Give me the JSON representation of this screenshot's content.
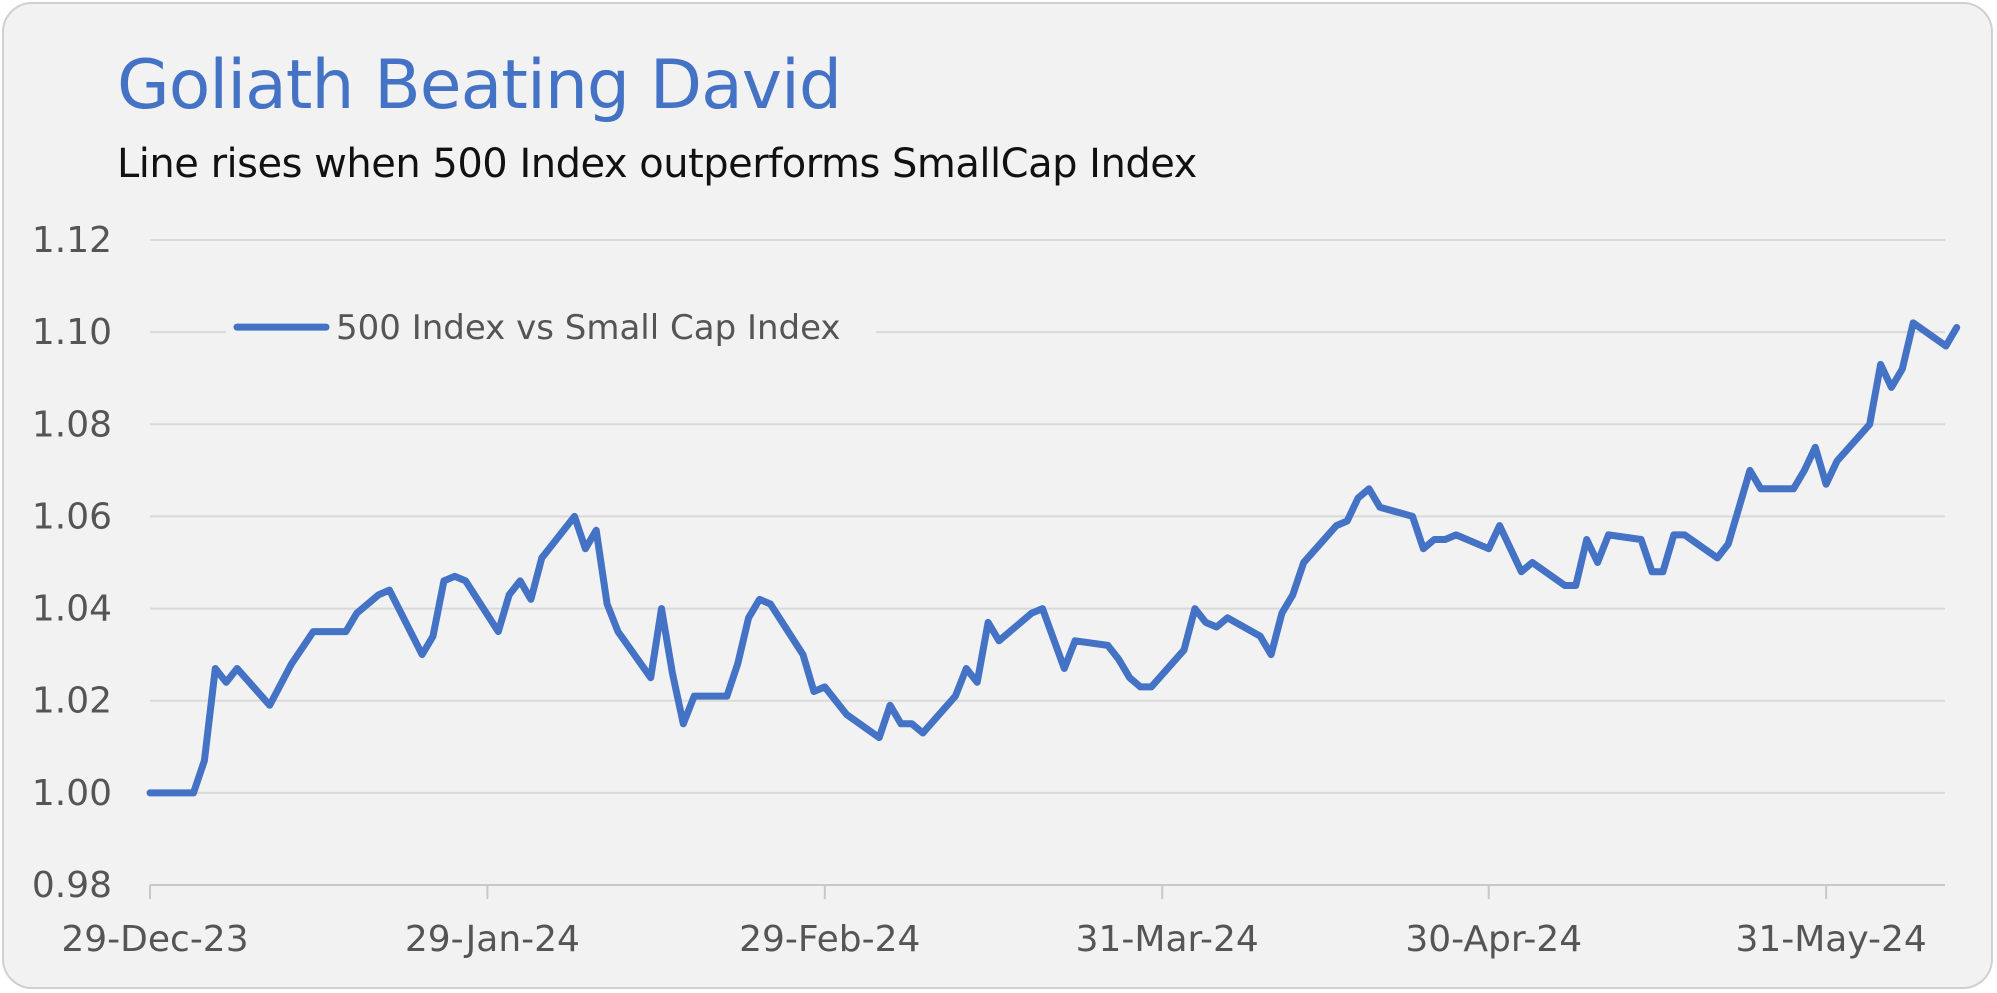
{
  "colors": {
    "background": "#f2f2f3",
    "title": "#4472c4",
    "series": "#4472c4",
    "grid": "#d9d9d9",
    "axis_text": "#555555"
  },
  "chart_data": {
    "type": "line",
    "title": "Goliath Beating David",
    "subtitle": "Line rises when 500 Index outperforms SmallCap Index",
    "xlabel": "",
    "ylabel": "",
    "x_type": "date",
    "xlim": [
      "2023-12-29",
      "2024-06-07"
    ],
    "ylim": [
      0.98,
      1.12
    ],
    "y_ticks": [
      "0.98",
      "1.00",
      "1.02",
      "1.04",
      "1.06",
      "1.08",
      "1.10",
      "1.12"
    ],
    "x_ticks": [
      {
        "label": "29-Dec-23",
        "date": "2023-12-29"
      },
      {
        "label": "29-Jan-24",
        "date": "2024-01-29"
      },
      {
        "label": "29-Feb-24",
        "date": "2024-02-29"
      },
      {
        "label": "31-Mar-24",
        "date": "2024-03-31"
      },
      {
        "label": "30-Apr-24",
        "date": "2024-04-30"
      },
      {
        "label": "31-May-24",
        "date": "2024-05-31"
      }
    ],
    "grid": "horizontal",
    "legend": {
      "position": "top-left",
      "entries": [
        "500 Index vs Small Cap Index"
      ]
    },
    "series": [
      {
        "name": "500 Index vs Small Cap Index",
        "points": [
          [
            "2023-12-29",
            1.0
          ],
          [
            "2024-01-02",
            1.0
          ],
          [
            "2024-01-03",
            1.007
          ],
          [
            "2024-01-04",
            1.027
          ],
          [
            "2024-01-05",
            1.024
          ],
          [
            "2024-01-06",
            1.027
          ],
          [
            "2024-01-09",
            1.019
          ],
          [
            "2024-01-11",
            1.028
          ],
          [
            "2024-01-13",
            1.035
          ],
          [
            "2024-01-16",
            1.035
          ],
          [
            "2024-01-17",
            1.039
          ],
          [
            "2024-01-19",
            1.043
          ],
          [
            "2024-01-20",
            1.044
          ],
          [
            "2024-01-23",
            1.03
          ],
          [
            "2024-01-24",
            1.034
          ],
          [
            "2024-01-25",
            1.046
          ],
          [
            "2024-01-26",
            1.047
          ],
          [
            "2024-01-27",
            1.046
          ],
          [
            "2024-01-30",
            1.035
          ],
          [
            "2024-01-31",
            1.043
          ],
          [
            "2024-02-01",
            1.046
          ],
          [
            "2024-02-02",
            1.042
          ],
          [
            "2024-02-03",
            1.051
          ],
          [
            "2024-02-06",
            1.06
          ],
          [
            "2024-02-07",
            1.053
          ],
          [
            "2024-02-08",
            1.057
          ],
          [
            "2024-02-09",
            1.041
          ],
          [
            "2024-02-10",
            1.035
          ],
          [
            "2024-02-13",
            1.025
          ],
          [
            "2024-02-14",
            1.04
          ],
          [
            "2024-02-15",
            1.026
          ],
          [
            "2024-02-16",
            1.015
          ],
          [
            "2024-02-17",
            1.021
          ],
          [
            "2024-02-20",
            1.021
          ],
          [
            "2024-02-21",
            1.028
          ],
          [
            "2024-02-22",
            1.038
          ],
          [
            "2024-02-23",
            1.042
          ],
          [
            "2024-02-24",
            1.041
          ],
          [
            "2024-02-27",
            1.03
          ],
          [
            "2024-02-28",
            1.022
          ],
          [
            "2024-02-29",
            1.023
          ],
          [
            "2024-03-02",
            1.017
          ],
          [
            "2024-03-05",
            1.012
          ],
          [
            "2024-03-06",
            1.019
          ],
          [
            "2024-03-07",
            1.015
          ],
          [
            "2024-03-08",
            1.015
          ],
          [
            "2024-03-09",
            1.013
          ],
          [
            "2024-03-12",
            1.021
          ],
          [
            "2024-03-13",
            1.027
          ],
          [
            "2024-03-14",
            1.024
          ],
          [
            "2024-03-15",
            1.037
          ],
          [
            "2024-03-16",
            1.033
          ],
          [
            "2024-03-19",
            1.039
          ],
          [
            "2024-03-20",
            1.04
          ],
          [
            "2024-03-22",
            1.027
          ],
          [
            "2024-03-23",
            1.033
          ],
          [
            "2024-03-26",
            1.032
          ],
          [
            "2024-03-27",
            1.029
          ],
          [
            "2024-03-28",
            1.025
          ],
          [
            "2024-03-29",
            1.023
          ],
          [
            "2024-03-30",
            1.023
          ],
          [
            "2024-04-02",
            1.031
          ],
          [
            "2024-04-03",
            1.04
          ],
          [
            "2024-04-04",
            1.037
          ],
          [
            "2024-04-05",
            1.036
          ],
          [
            "2024-04-06",
            1.038
          ],
          [
            "2024-04-09",
            1.034
          ],
          [
            "2024-04-10",
            1.03
          ],
          [
            "2024-04-11",
            1.039
          ],
          [
            "2024-04-12",
            1.043
          ],
          [
            "2024-04-13",
            1.05
          ],
          [
            "2024-04-16",
            1.058
          ],
          [
            "2024-04-17",
            1.059
          ],
          [
            "2024-04-18",
            1.064
          ],
          [
            "2024-04-19",
            1.066
          ],
          [
            "2024-04-20",
            1.062
          ],
          [
            "2024-04-23",
            1.06
          ],
          [
            "2024-04-24",
            1.053
          ],
          [
            "2024-04-25",
            1.055
          ],
          [
            "2024-04-26",
            1.055
          ],
          [
            "2024-04-27",
            1.056
          ],
          [
            "2024-04-30",
            1.053
          ],
          [
            "2024-05-01",
            1.058
          ],
          [
            "2024-05-03",
            1.048
          ],
          [
            "2024-05-04",
            1.05
          ],
          [
            "2024-05-07",
            1.045
          ],
          [
            "2024-05-08",
            1.045
          ],
          [
            "2024-05-09",
            1.055
          ],
          [
            "2024-05-10",
            1.05
          ],
          [
            "2024-05-11",
            1.056
          ],
          [
            "2024-05-14",
            1.055
          ],
          [
            "2024-05-15",
            1.048
          ],
          [
            "2024-05-16",
            1.048
          ],
          [
            "2024-05-17",
            1.056
          ],
          [
            "2024-05-18",
            1.056
          ],
          [
            "2024-05-21",
            1.051
          ],
          [
            "2024-05-22",
            1.054
          ],
          [
            "2024-05-23",
            1.062
          ],
          [
            "2024-05-24",
            1.07
          ],
          [
            "2024-05-25",
            1.066
          ],
          [
            "2024-05-28",
            1.066
          ],
          [
            "2024-05-29",
            1.07
          ],
          [
            "2024-05-30",
            1.075
          ],
          [
            "2024-05-31",
            1.067
          ],
          [
            "2024-06-01",
            1.072
          ],
          [
            "2024-06-04",
            1.08
          ],
          [
            "2024-06-05",
            1.093
          ],
          [
            "2024-06-06",
            1.088
          ],
          [
            "2024-06-07",
            1.092
          ],
          [
            "2024-06-08",
            1.102
          ],
          [
            "2024-06-11",
            1.097
          ],
          [
            "2024-06-12",
            1.101
          ]
        ]
      }
    ]
  }
}
